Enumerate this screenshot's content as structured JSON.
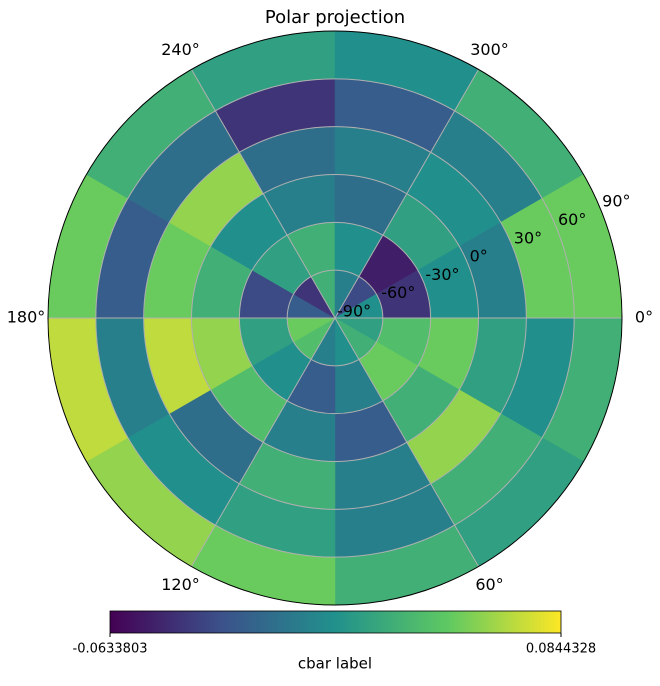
{
  "chart_data": {
    "type": "polar-heatmap",
    "title": "Polar projection",
    "theta_bins": [
      0,
      30,
      60,
      90,
      120,
      150,
      180,
      210,
      240,
      270,
      300,
      330,
      360
    ],
    "r_bins": [
      -90,
      -60,
      -30,
      0,
      30,
      60,
      90
    ],
    "values": [
      [
        0.02,
        0.03,
        0.01,
        0.0,
        0.04,
        0.05,
        -0.02,
        -0.04,
        0.03,
        0.0,
        -0.03,
        0.01
      ],
      [
        0.04,
        0.05,
        0.0,
        -0.02,
        0.01,
        0.02,
        -0.03,
        0.02,
        0.03,
        0.01,
        -0.05,
        -0.04
      ],
      [
        0.05,
        0.03,
        -0.02,
        0.0,
        0.04,
        0.06,
        0.03,
        0.01,
        0.0,
        -0.01,
        0.02,
        0.01
      ],
      [
        0.02,
        0.06,
        0.0,
        0.03,
        -0.01,
        0.07,
        0.05,
        0.06,
        -0.01,
        0.0,
        0.01,
        0.0
      ],
      [
        0.01,
        0.03,
        0.0,
        0.02,
        0.01,
        0.0,
        -0.02,
        -0.01,
        -0.04,
        -0.02,
        0.0,
        0.05
      ],
      [
        0.03,
        0.02,
        0.03,
        0.05,
        0.06,
        0.07,
        0.05,
        0.03,
        0.02,
        0.01,
        0.03,
        0.05
      ]
    ],
    "ylim": [
      -90,
      90
    ],
    "yticks": [
      {
        "value": -90,
        "label": "-90°"
      },
      {
        "value": -60,
        "label": "-60°"
      },
      {
        "value": -30,
        "label": "-30°"
      },
      {
        "value": 0,
        "label": "0°"
      },
      {
        "value": 30,
        "label": "30°"
      },
      {
        "value": 60,
        "label": "60°"
      },
      {
        "value": 90,
        "label": "90°"
      }
    ],
    "xticks": [
      {
        "value": 0,
        "label": "0°"
      },
      {
        "value": 60,
        "label": "60°"
      },
      {
        "value": 120,
        "label": "120°"
      },
      {
        "value": 180,
        "label": "180°"
      },
      {
        "value": 240,
        "label": "240°"
      },
      {
        "value": 300,
        "label": "300°"
      }
    ],
    "theta_direction": "clockwise",
    "grid": true,
    "colormap": "viridis",
    "clim": [
      -0.0633803,
      0.0844328
    ],
    "cticks": [
      -0.0633803,
      0.0844328
    ],
    "colorbar_label": "cbar label"
  }
}
